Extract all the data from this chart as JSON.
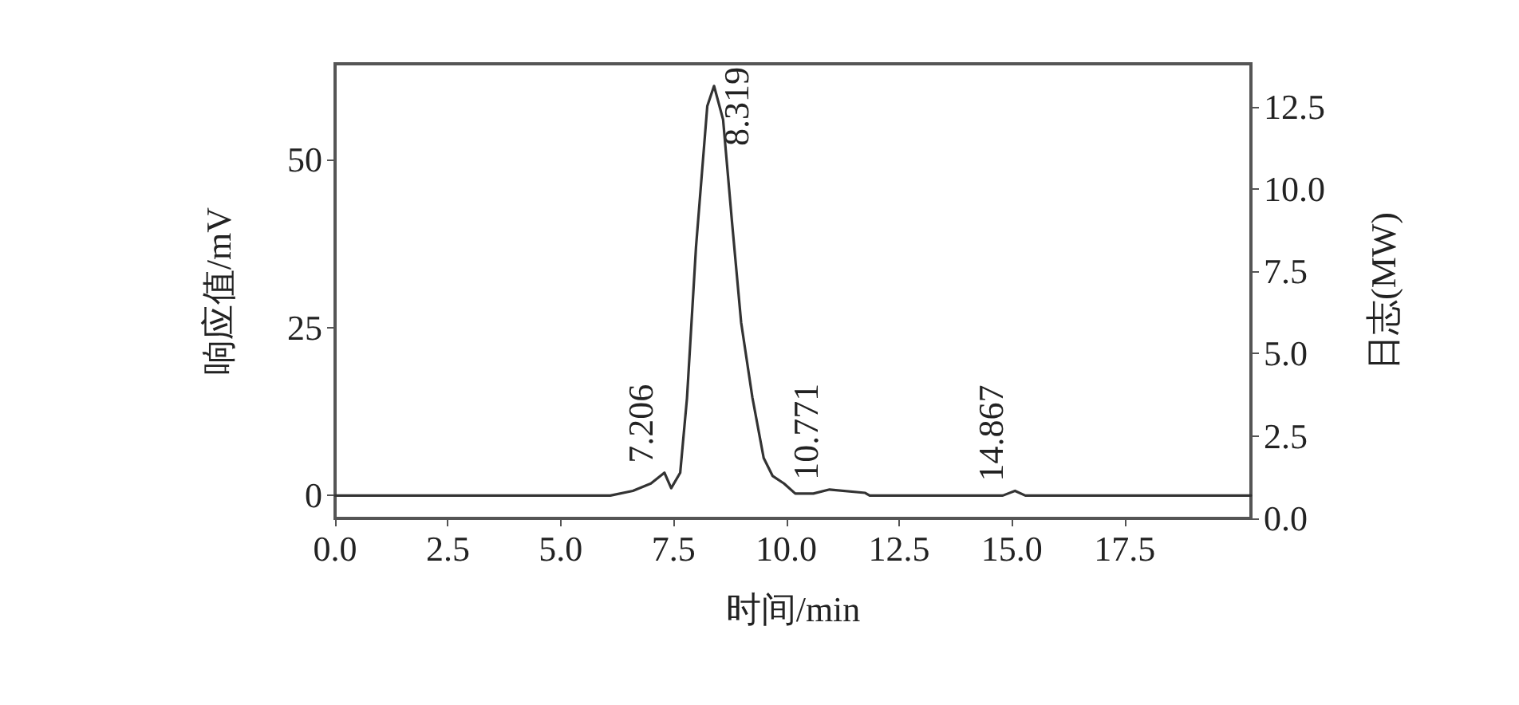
{
  "chart_data": {
    "type": "line",
    "xlabel": "时间/min",
    "ylabel": "响应值/mV",
    "y2label": "日志(MW)",
    "x": [
      0,
      6.1,
      6.6,
      7.0,
      7.3,
      7.45,
      7.65,
      7.8,
      8.0,
      8.25,
      8.4,
      8.6,
      8.8,
      9.0,
      9.25,
      9.5,
      9.7,
      9.95,
      10.2,
      10.6,
      10.96,
      11.75,
      11.85,
      14.8,
      15.07,
      15.3,
      20.3
    ],
    "series": [
      {
        "color": "#333333",
        "values": [
          0,
          0,
          0.7,
          1.8,
          3.4,
          1.1,
          3.4,
          14.5,
          37,
          58,
          61,
          56,
          40.6,
          25.8,
          14.6,
          5.6,
          2.9,
          1.8,
          0.3,
          0.3,
          0.9,
          0.4,
          0,
          0,
          0.7,
          0,
          0
        ]
      }
    ],
    "xlim": [
      0,
      20.3
    ],
    "xticks": [
      {
        "value": 0,
        "label": "0.0"
      },
      2.5,
      {
        "value": 5,
        "label": "5.0"
      },
      7.5,
      {
        "value": 10,
        "label": "10.0"
      },
      12.5,
      {
        "value": 15,
        "label": "15.0"
      },
      17.5
    ],
    "ylim": [
      -3.4,
      64.3
    ],
    "yticks": [
      0,
      25,
      50
    ],
    "y2lim": [
      0,
      13.8
    ],
    "y2ticks": [
      {
        "value": 0,
        "label": "0.0"
      },
      2.5,
      {
        "value": 5,
        "label": "5.0"
      },
      7.5,
      {
        "value": 10,
        "label": "10.0"
      },
      12.5
    ],
    "annotations": [
      {
        "text": "7.206",
        "x": 7.3,
        "y": 3.4
      },
      {
        "text": "8.319",
        "x": 8.4,
        "y": 61
      },
      {
        "text": "10.771",
        "x": 10.96,
        "y": 0.9
      },
      {
        "text": "14.867",
        "x": 15.07,
        "y": 0.7
      }
    ],
    "grid": false,
    "marker": "none",
    "line_style": "solid"
  }
}
